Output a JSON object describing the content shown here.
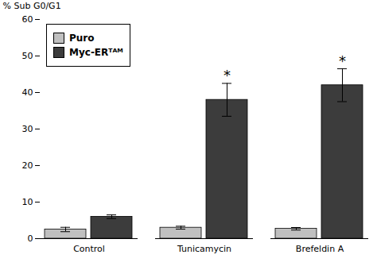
{
  "chart_data": {
    "type": "bar",
    "categories": [
      "Control",
      "Tunicamycin",
      "Brefeldin A"
    ],
    "series": [
      {
        "name": "Puro",
        "color": "#c0c0c0",
        "values": [
          2.5,
          3.0,
          2.7
        ],
        "errors": [
          0.6,
          0.4,
          0.35
        ]
      },
      {
        "name": "Myc-ERᵀᴬᴹ",
        "color": "#3c3c3c",
        "values": [
          6.0,
          38.0,
          42.0
        ],
        "errors": [
          0.5,
          4.5,
          4.5
        ],
        "annotations": [
          null,
          "*",
          "*"
        ]
      }
    ],
    "ylabel": "% Sub G0/G1",
    "ylim": [
      0,
      60
    ],
    "yticks": [
      0,
      10,
      20,
      30,
      40,
      50,
      60
    ],
    "grid": false,
    "legend": "upper left"
  }
}
